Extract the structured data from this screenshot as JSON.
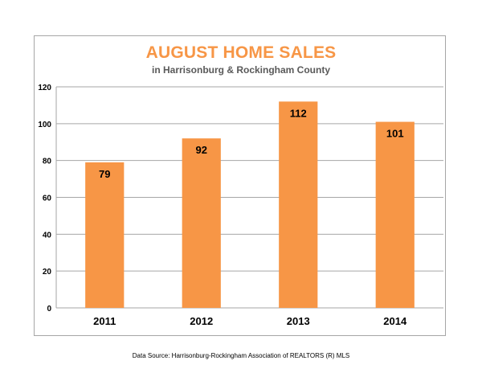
{
  "chart_data": {
    "type": "bar",
    "title": "AUGUST HOME SALES",
    "subtitle": "in Harrisonburg & Rockingham County",
    "categories": [
      "2011",
      "2012",
      "2013",
      "2014"
    ],
    "values": [
      79,
      92,
      112,
      101
    ],
    "data_labels": [
      "79",
      "92",
      "112",
      "101"
    ],
    "ylim": [
      0,
      120
    ],
    "yticks": [
      0,
      20,
      40,
      60,
      80,
      100,
      120
    ],
    "xlabel": "",
    "ylabel": "",
    "grid": true,
    "legend": "none",
    "colors": {
      "bar": "#f79646",
      "title": "#f79646",
      "subtitle": "#595959",
      "grid": "#a6a6a6"
    }
  },
  "footer": "Data Source: Harrisonburg-Rockingham Association of REALTORS (R) MLS"
}
